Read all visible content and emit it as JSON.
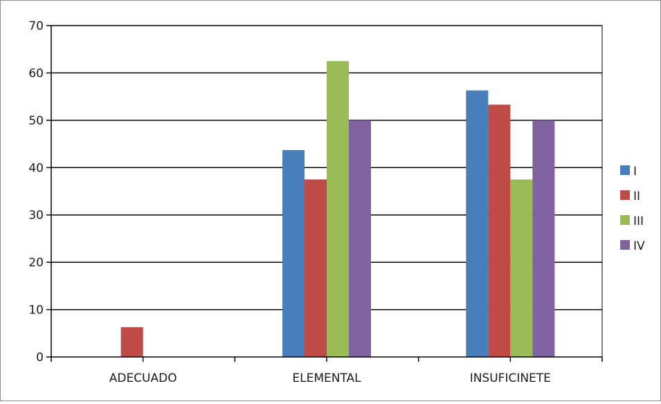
{
  "chart_data": {
    "type": "bar",
    "categories": [
      "ADECUADO",
      "ELEMENTAL",
      "INSUFICINETE"
    ],
    "series": [
      {
        "name": "I",
        "values": [
          0,
          43.7,
          56.3
        ],
        "color": "#4a7ebb"
      },
      {
        "name": "II",
        "values": [
          6.3,
          37.5,
          53.3
        ],
        "color": "#be4b48"
      },
      {
        "name": "III",
        "values": [
          0,
          62.5,
          37.5
        ],
        "color": "#9bbb59"
      },
      {
        "name": "IV",
        "values": [
          0,
          50,
          50
        ],
        "color": "#7f63a1"
      }
    ],
    "ylim": [
      0,
      70
    ],
    "yticks": [
      0,
      10,
      20,
      30,
      40,
      50,
      60,
      70
    ],
    "grid": true,
    "legend": "right"
  }
}
